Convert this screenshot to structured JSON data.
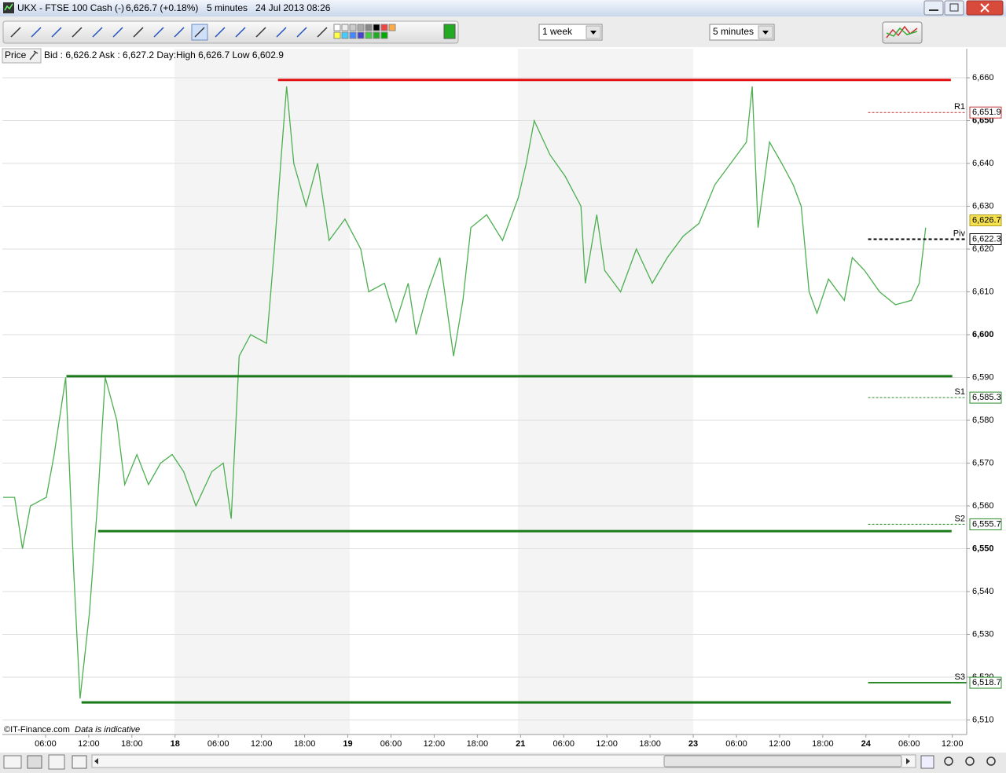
{
  "window": {
    "title": "UKX - FTSE 100 Cash (-)",
    "price": "6,626.7 (+0.18%)",
    "interval": "5 minutes",
    "timestamp": "24 Jul 2013 08:26"
  },
  "toolbar": {
    "period": "1 week",
    "interval": "5 minutes"
  },
  "info": {
    "label": "Price",
    "quote": "Bid : 6,626.2 Ask : 6,627.2 Day:High 6,626.7 Low 6,602.9"
  },
  "chart_data": {
    "type": "line",
    "color": "#4caf50",
    "x": [
      0.1,
      1.7,
      2.8,
      3.9,
      6.1,
      7.2,
      8.8,
      9.9,
      10.8,
      12.1,
      13.2,
      14.3,
      15.9,
      17.0,
      18.7,
      20.3,
      22.0,
      23.6,
      25.2,
      26.9,
      29.1,
      30.7,
      31.8,
      32.9,
      34.5,
      36.7,
      37.8,
      38.9,
      39.5,
      40.5,
      42.2,
      43.8,
      45.4,
      47.6,
      49.8,
      50.9,
      53.1,
      54.7,
      56.4,
      57.5,
      59.1,
      60.8,
      62.7,
      64.0,
      65.1,
      67.3,
      69.5,
      71.7,
      72.8,
      73.9,
      76.1,
      78.2,
      80.4,
      81.0,
      82.6,
      83.7,
      85.9,
      88.1,
      90.3,
      92.4,
      94.6,
      96.8,
      99.0,
      101.2,
      103.4,
      104.2,
      105.0,
      106.6,
      108.3,
      109.9,
      111.0,
      112.1,
      113.2,
      114.8,
      117.0,
      118.1,
      119.8,
      121.9,
      124.1,
      126.3,
      127.4,
      128.3
    ],
    "values": [
      6562,
      6562,
      6550,
      6560,
      6562,
      6572,
      6590,
      6545,
      6515,
      6535,
      6560,
      6590,
      6580,
      6565,
      6572,
      6565,
      6570,
      6572,
      6568,
      6560,
      6568,
      6570,
      6557,
      6595,
      6600,
      6598,
      6620,
      6645,
      6658,
      6640,
      6630,
      6640,
      6622,
      6627,
      6620,
      6610,
      6612,
      6603,
      6612,
      6600,
      6610,
      6618,
      6595,
      6608,
      6625,
      6628,
      6622,
      6632,
      6640,
      6650,
      6642,
      6637,
      6630,
      6612,
      6628,
      6615,
      6610,
      6620,
      6612,
      6618,
      6623,
      6626,
      6635,
      6640,
      6645,
      6658,
      6625,
      6645,
      6640,
      6635,
      6630,
      6610,
      6605,
      6613,
      6608,
      6618,
      6615,
      6610,
      6607,
      6608,
      6612,
      6625
    ],
    "xlim": [
      0,
      134
    ],
    "ylim": [
      6506.6,
      6666.8
    ],
    "xticks": [
      {
        "value": 6,
        "label": "06:00"
      },
      {
        "value": 12,
        "label": "12:00"
      },
      {
        "value": 18,
        "label": "18:00"
      },
      {
        "value": 24,
        "label": "18"
      },
      {
        "value": 30,
        "label": "06:00"
      },
      {
        "value": 36,
        "label": "12:00"
      },
      {
        "value": 42,
        "label": "18:00"
      },
      {
        "value": 48,
        "label": "19"
      },
      {
        "value": 54,
        "label": "06:00"
      },
      {
        "value": 60,
        "label": "12:00"
      },
      {
        "value": 66,
        "label": "18:00"
      },
      {
        "value": 72,
        "label": "21"
      },
      {
        "value": 78,
        "label": "06:00"
      },
      {
        "value": 84,
        "label": "12:00"
      },
      {
        "value": 90,
        "label": "18:00"
      },
      {
        "value": 96,
        "label": "23"
      },
      {
        "value": 102,
        "label": "06:00"
      },
      {
        "value": 108,
        "label": "12:00"
      },
      {
        "value": 114,
        "label": "18:00"
      },
      {
        "value": 120,
        "label": "24"
      },
      {
        "value": 126,
        "label": "06:00"
      },
      {
        "value": 132,
        "label": "12:00"
      }
    ],
    "yticks": [
      {
        "value": 6510,
        "label": "6,510"
      },
      {
        "value": 6520,
        "label": "6,520"
      },
      {
        "value": 6530,
        "label": "6,530"
      },
      {
        "value": 6540,
        "label": "6,540"
      },
      {
        "value": 6550,
        "label": "6,550"
      },
      {
        "value": 6560,
        "label": "6,560"
      },
      {
        "value": 6570,
        "label": "6,570"
      },
      {
        "value": 6580,
        "label": "6,580"
      },
      {
        "value": 6590,
        "label": "6,590"
      },
      {
        "value": 6600,
        "label": "6,600"
      },
      {
        "value": 6610,
        "label": "6,610"
      },
      {
        "value": 6620,
        "label": "6,620"
      },
      {
        "value": 6630,
        "label": "6,630"
      },
      {
        "value": 6640,
        "label": "6,640"
      },
      {
        "value": 6650,
        "label": "6,650"
      },
      {
        "value": 6660,
        "label": "6,660"
      }
    ],
    "grid": true,
    "levels": [
      {
        "value": 6659.5,
        "x": [
          38.3,
          131.8
        ],
        "color": "#e01010"
      },
      {
        "value": 6590.3,
        "x": [
          8.9,
          132
        ],
        "color": "#1a7a1a"
      },
      {
        "value": 6554.1,
        "x": [
          13.3,
          131.9
        ],
        "color": "#1a7a1a"
      },
      {
        "value": 6514.1,
        "x": [
          11.0,
          131.8
        ],
        "color": "#1a7a1a"
      }
    ],
    "pivot_start": 120.3,
    "pivots": [
      {
        "name": "R1",
        "value": 6651.9,
        "label": "6,651.9",
        "color": "#c03030",
        "style": "dashed"
      },
      {
        "name": "Piv",
        "value": 6622.3,
        "label": "6,622.3",
        "color": "#000000",
        "style": "dashed"
      },
      {
        "name": "S1",
        "value": 6585.3,
        "label": "6,585.3",
        "color": "#2a8a2a",
        "style": "dashed"
      },
      {
        "name": "S2",
        "value": 6555.7,
        "label": "6,555.7",
        "color": "#2a8a2a",
        "style": "dashed"
      },
      {
        "name": "S3",
        "value": 6518.7,
        "label": "6,518.7",
        "color": "#2a8a2a",
        "style": "solid"
      }
    ],
    "current": {
      "value": 6626.7,
      "label": "6,626.7",
      "color": "#f5e050"
    }
  },
  "footer": {
    "copyright": "©IT-Finance.com",
    "note": "Data is indicative"
  }
}
